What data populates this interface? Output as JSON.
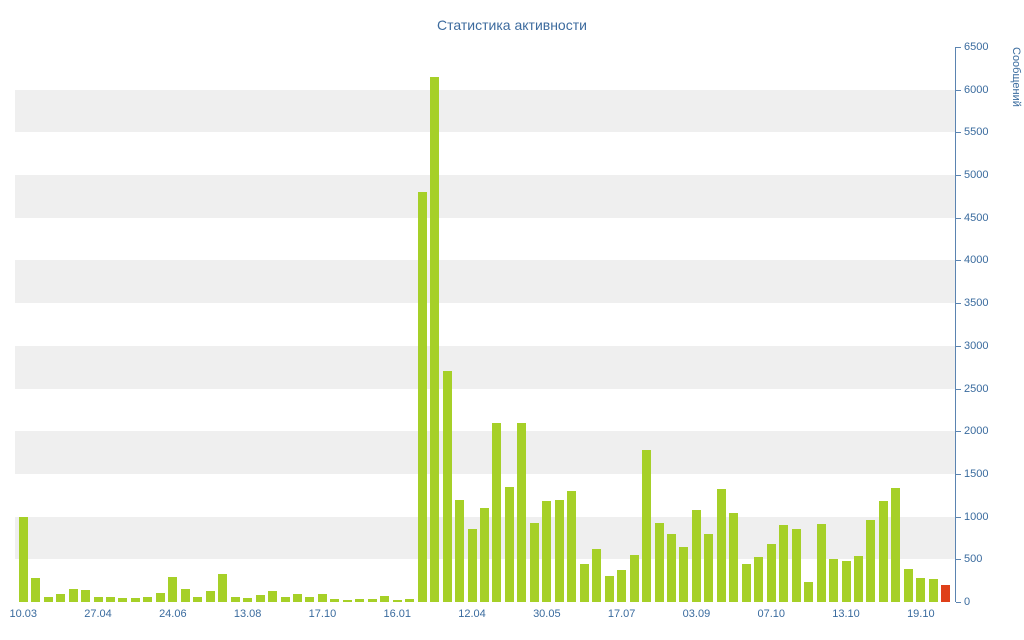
{
  "colors": {
    "bar": "#a6d028",
    "highlight_bar": "#df4019",
    "axis": "#5b84b1",
    "text": "#3a6b9e",
    "stripe": "#efefef",
    "background": "#ffffff"
  },
  "chart_data": {
    "type": "bar",
    "title": "Статистика активности",
    "xlabel": "",
    "ylabel": "Сообщений",
    "ylim": [
      0,
      6500
    ],
    "ytick_step": 500,
    "grid": "striped-horizontal-bands",
    "legend": "none",
    "x_tick_labels": [
      "10.03",
      "27.04",
      "24.06",
      "13.08",
      "17.10",
      "16.01",
      "12.04",
      "30.05",
      "17.07",
      "03.09",
      "07.10",
      "13.10",
      "19.10"
    ],
    "x_tick_every": 6,
    "highlight_last": true,
    "values": [
      1000,
      280,
      60,
      90,
      150,
      140,
      60,
      55,
      50,
      50,
      60,
      100,
      290,
      150,
      60,
      130,
      330,
      60,
      50,
      80,
      130,
      60,
      90,
      55,
      90,
      35,
      20,
      40,
      30,
      70,
      20,
      30,
      4800,
      6150,
      2700,
      1200,
      850,
      1100,
      2100,
      1350,
      2100,
      920,
      1180,
      1200,
      1300,
      450,
      620,
      310,
      370,
      550,
      1780,
      930,
      800,
      650,
      1080,
      800,
      1320,
      1040,
      450,
      530,
      680,
      900,
      860,
      240,
      910,
      500,
      480,
      540,
      960,
      1180,
      1340,
      390,
      280,
      270,
      200
    ]
  }
}
